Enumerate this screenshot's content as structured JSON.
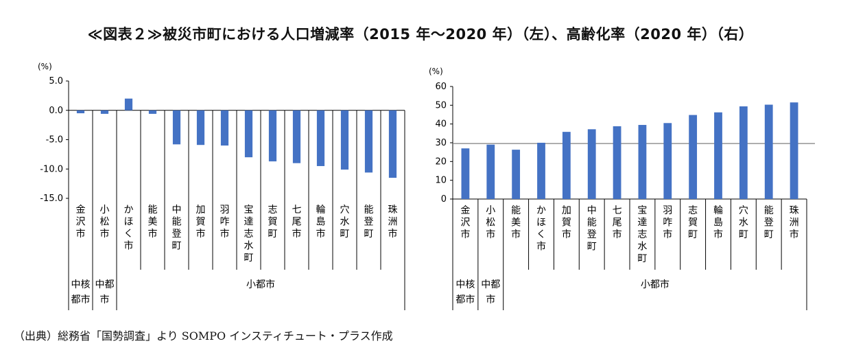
{
  "title": "≪図表２≫被災市町における人口増減率（2015 年～2020 年）（左）、高齢化率（2020 年）（右）",
  "source": "（出典）総務省「国勢調査」より SOMPO インスティチュート・プラス作成",
  "colors": {
    "bar": "#4472c4",
    "axis": "#000000",
    "refline": "#7f7f7f"
  },
  "chart_data": [
    {
      "type": "bar",
      "unit_label": "(%)",
      "categories": [
        "金沢市",
        "小松市",
        "かほく市",
        "能美市",
        "中能登町",
        "加賀市",
        "羽咋市",
        "宝達志水町",
        "志賀町",
        "七尾市",
        "輪島市",
        "穴水町",
        "能登町",
        "珠洲市"
      ],
      "values": [
        -0.5,
        -0.6,
        2.0,
        -0.6,
        -5.8,
        -5.9,
        -6.0,
        -8.0,
        -8.7,
        -9.0,
        -9.5,
        -10.1,
        -10.6,
        -11.5
      ],
      "ylim": [
        -15,
        5
      ],
      "yticks": [
        "5.0",
        "0.0",
        "-5.0",
        "-10.0",
        "-15.0"
      ],
      "groups": [
        {
          "label": "中核都市",
          "span": 1
        },
        {
          "label": "中都市",
          "span": 1
        },
        {
          "label": "小都市",
          "span": 12
        }
      ]
    },
    {
      "type": "bar",
      "unit_label": "(%)",
      "categories": [
        "金沢市",
        "小松市",
        "能美市",
        "かほく市",
        "加賀市",
        "中能登町",
        "七尾市",
        "宝達志水町",
        "羽咋市",
        "志賀町",
        "輪島市",
        "穴水町",
        "能登町",
        "珠洲市"
      ],
      "values": [
        27.0,
        29.0,
        26.3,
        30.0,
        35.8,
        37.2,
        38.8,
        39.5,
        40.5,
        44.8,
        46.2,
        49.4,
        50.3,
        51.5
      ],
      "ylim": [
        0,
        60
      ],
      "yticks": [
        "60",
        "50",
        "40",
        "30",
        "20",
        "10",
        "0"
      ],
      "reference_line": 29.6,
      "groups": [
        {
          "label": "中核都市",
          "span": 1
        },
        {
          "label": "中都市",
          "span": 1
        },
        {
          "label": "小都市",
          "span": 12
        }
      ]
    }
  ]
}
